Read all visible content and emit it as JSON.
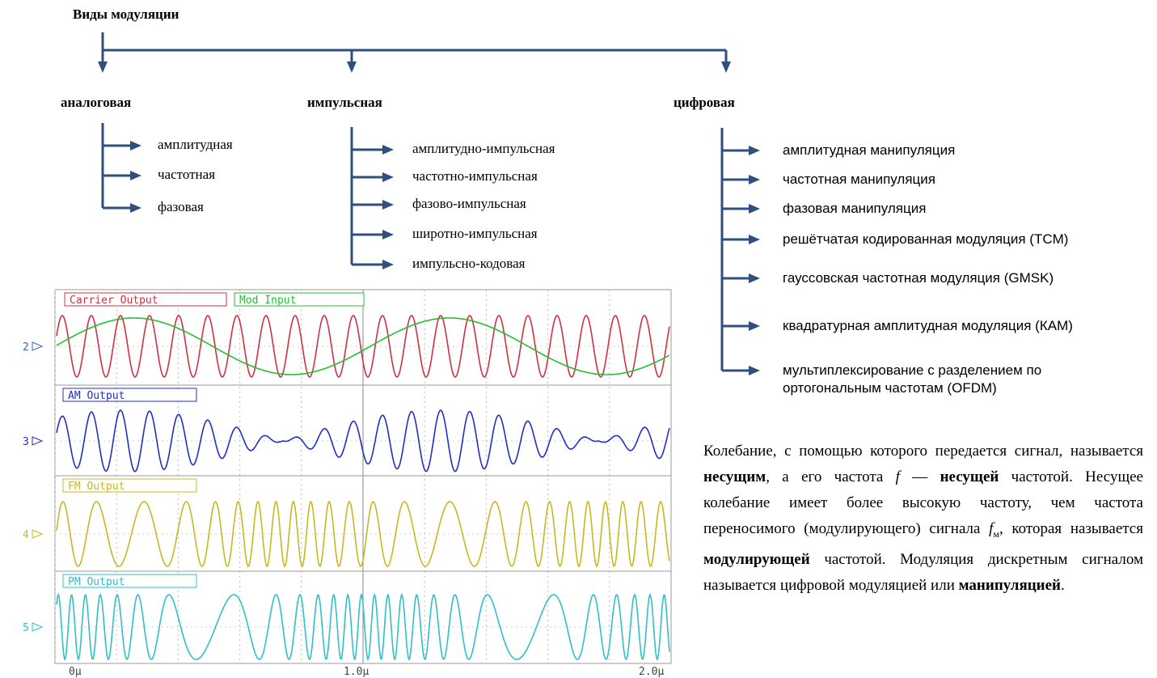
{
  "title": "Виды модуляции",
  "groups": [
    {
      "label": "аналоговая",
      "items": [
        "амплитудная",
        "частотная",
        "фазовая"
      ]
    },
    {
      "label": "импульсная",
      "items": [
        "амплитудно-импульсная",
        "частотно-импульсная",
        "фазово-импульсная",
        "широтно-импульсная",
        "импульсно-кодовая"
      ]
    },
    {
      "label": "цифровая",
      "items": [
        "амплитудная манипуляция",
        "частотная манипуляция",
        "фазовая манипуляция",
        "решётчатая кодированная модуляция (TCM)",
        "гауссовская частотная модуляция (GMSK)",
        "квадратурная амплитудная модуляция (КАМ)",
        "мультиплексирование с разделением по ортогональным частотам (OFDM)"
      ]
    }
  ],
  "scope": {
    "traces": [
      "Carrier Output",
      "Mod Input",
      "AM Output",
      "FM Output",
      "PM Output"
    ],
    "channels": [
      "2",
      "3",
      "4",
      "5"
    ],
    "time_labels": [
      "0μ",
      "1.0μ",
      "2.0μ"
    ]
  },
  "paragraph": [
    {
      "text": "Колебание, с помощью которого передается сигнал, называется ",
      "style": "normal"
    },
    {
      "text": "несущим",
      "style": "bold"
    },
    {
      "text": ", а его частота ",
      "style": "normal"
    },
    {
      "text": "f",
      "style": "italic"
    },
    {
      "text": " — ",
      "style": "normal"
    },
    {
      "text": "несущей",
      "style": "bold"
    },
    {
      "text": " частотой. Несущее колебание имеет более высокую частоту, чем частота переносимого (модулирующего) сигнала ",
      "style": "normal"
    },
    {
      "text": "f",
      "style": "italic"
    },
    {
      "text": "м",
      "style": "sub"
    },
    {
      "text": ", которая называется ",
      "style": "normal"
    },
    {
      "text": "модулирующей",
      "style": "bold"
    },
    {
      "text": " частотой. Модуляция дискретным сигналом называется цифровой модуляцией или ",
      "style": "normal"
    },
    {
      "text": "манипуляцией",
      "style": "bold"
    },
    {
      "text": ".",
      "style": "normal"
    }
  ]
}
